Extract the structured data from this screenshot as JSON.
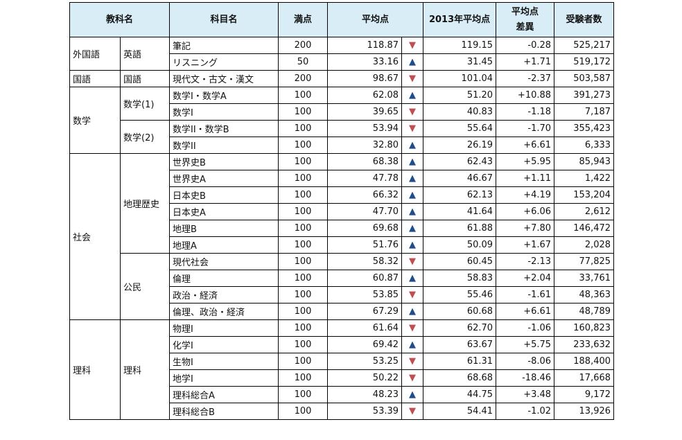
{
  "headers": {
    "kyoka": "教科名",
    "kamoku": "科目名",
    "manten": "満点",
    "heikin": "平均点",
    "prev": "2013年平均点",
    "diff_line1": "平均点",
    "diff_line2": "差異",
    "examinees": "受験者数"
  },
  "groups": {
    "gaikokugo": "外国語",
    "eigo": "英語",
    "kokugo": "国語",
    "kokugo_sub": "国語",
    "sugaku": "数学",
    "sugaku1": "数学(1)",
    "sugaku2": "数学(2)",
    "shakai": "社会",
    "chiri_rekishi": "地理歴史",
    "komin": "公民",
    "rika": "理科",
    "rika_sub": "理科"
  },
  "rows": [
    {
      "name": "筆記",
      "full": "200",
      "avg": "118.87",
      "dir": "down",
      "prev": "119.15",
      "diff": "-0.28",
      "count": "525,217"
    },
    {
      "name": "リスニング",
      "full": "50",
      "avg": "33.16",
      "dir": "up",
      "prev": "31.45",
      "diff": "+1.71",
      "count": "519,172"
    },
    {
      "name": "現代文・古文・漢文",
      "full": "200",
      "avg": "98.67",
      "dir": "down",
      "prev": "101.04",
      "diff": "-2.37",
      "count": "503,587"
    },
    {
      "name": "数学I・数学A",
      "full": "100",
      "avg": "62.08",
      "dir": "up",
      "prev": "51.20",
      "diff": "+10.88",
      "count": "391,273"
    },
    {
      "name": "数学I",
      "full": "100",
      "avg": "39.65",
      "dir": "down",
      "prev": "40.83",
      "diff": "-1.18",
      "count": "7,187"
    },
    {
      "name": "数学II・数学B",
      "full": "100",
      "avg": "53.94",
      "dir": "down",
      "prev": "55.64",
      "diff": "-1.70",
      "count": "355,423"
    },
    {
      "name": "数学II",
      "full": "100",
      "avg": "32.80",
      "dir": "up",
      "prev": "26.19",
      "diff": "+6.61",
      "count": "6,333"
    },
    {
      "name": "世界史B",
      "full": "100",
      "avg": "68.38",
      "dir": "up",
      "prev": "62.43",
      "diff": "+5.95",
      "count": "85,943"
    },
    {
      "name": "世界史A",
      "full": "100",
      "avg": "47.78",
      "dir": "up",
      "prev": "46.67",
      "diff": "+1.11",
      "count": "1,422"
    },
    {
      "name": "日本史B",
      "full": "100",
      "avg": "66.32",
      "dir": "up",
      "prev": "62.13",
      "diff": "+4.19",
      "count": "153,204"
    },
    {
      "name": "日本史A",
      "full": "100",
      "avg": "47.70",
      "dir": "up",
      "prev": "41.64",
      "diff": "+6.06",
      "count": "2,612"
    },
    {
      "name": "地理B",
      "full": "100",
      "avg": "69.68",
      "dir": "up",
      "prev": "61.88",
      "diff": "+7.80",
      "count": "146,472"
    },
    {
      "name": "地理A",
      "full": "100",
      "avg": "51.76",
      "dir": "up",
      "prev": "50.09",
      "diff": "+1.67",
      "count": "2,028"
    },
    {
      "name": "現代社会",
      "full": "100",
      "avg": "58.32",
      "dir": "down",
      "prev": "60.45",
      "diff": "-2.13",
      "count": "77,825"
    },
    {
      "name": "倫理",
      "full": "100",
      "avg": "60.87",
      "dir": "up",
      "prev": "58.83",
      "diff": "+2.04",
      "count": "33,761"
    },
    {
      "name": "政治・経済",
      "full": "100",
      "avg": "53.85",
      "dir": "down",
      "prev": "55.46",
      "diff": "-1.61",
      "count": "48,363"
    },
    {
      "name": "倫理、政治・経済",
      "full": "100",
      "avg": "67.29",
      "dir": "up",
      "prev": "60.68",
      "diff": "+6.61",
      "count": "48,789"
    },
    {
      "name": "物理I",
      "full": "100",
      "avg": "61.64",
      "dir": "down",
      "prev": "62.70",
      "diff": "-1.06",
      "count": "160,823"
    },
    {
      "name": "化学I",
      "full": "100",
      "avg": "69.42",
      "dir": "up",
      "prev": "63.67",
      "diff": "+5.75",
      "count": "233,632"
    },
    {
      "name": "生物I",
      "full": "100",
      "avg": "53.25",
      "dir": "down",
      "prev": "61.31",
      "diff": "-8.06",
      "count": "188,400"
    },
    {
      "name": "地学I",
      "full": "100",
      "avg": "50.22",
      "dir": "down",
      "prev": "68.68",
      "diff": "-18.46",
      "count": "17,668"
    },
    {
      "name": "理科総合A",
      "full": "100",
      "avg": "48.23",
      "dir": "up",
      "prev": "44.75",
      "diff": "+3.48",
      "count": "9,172"
    },
    {
      "name": "理科総合B",
      "full": "100",
      "avg": "53.39",
      "dir": "down",
      "prev": "54.41",
      "diff": "-1.02",
      "count": "13,926"
    }
  ],
  "arrow_glyphs": {
    "up": "▲",
    "down": "▼"
  },
  "colors": {
    "header_bg": "#d9edf7",
    "up": "#1f4e8c",
    "down": "#c0504d"
  }
}
